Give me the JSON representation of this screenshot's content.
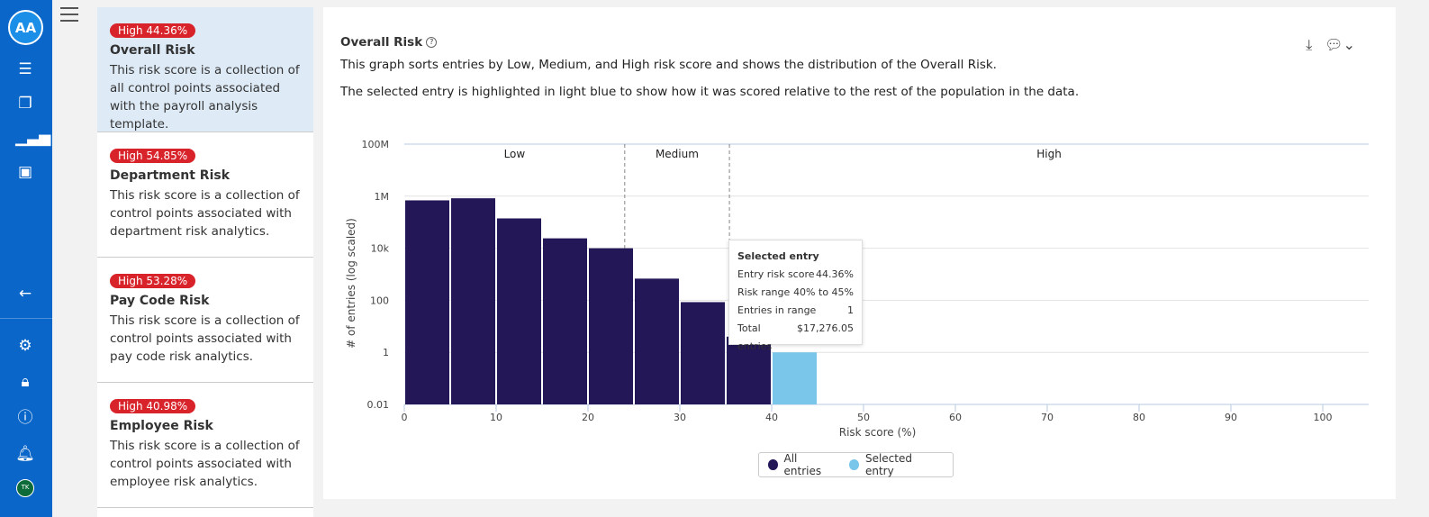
{
  "nav": {
    "logo": "AA",
    "icons": [
      "server-icon",
      "documents-icon",
      "bar-chart-icon",
      "reports-icon",
      "arrow-left-icon",
      "gear-icon",
      "lock-icon",
      "help-icon",
      "bell-icon"
    ],
    "avatar": "TK"
  },
  "cards": [
    {
      "badge": "High 44.36%",
      "title": "Overall Risk",
      "desc": "This risk score is a collection of all control points associated with the payroll analysis template.",
      "selected": true
    },
    {
      "badge": "High 54.85%",
      "title": "Department Risk",
      "desc": "This risk score is a collection of control points associated with department risk analytics."
    },
    {
      "badge": "High 53.28%",
      "title": "Pay Code Risk",
      "desc": "This risk score is a collection of control points associated with pay code risk analytics."
    },
    {
      "badge": "High 40.98%",
      "title": "Employee Risk",
      "desc": "This risk score is a collection of control points associated with employee risk analytics."
    }
  ],
  "panel": {
    "title": "Overall Risk",
    "desc1": "This graph sorts entries by Low, Medium, and High risk score and shows the distribution of the Overall Risk.",
    "desc2": "The selected entry is highlighted in light blue to show how it was scored relative to the rest of the population in the data."
  },
  "tooltip": {
    "title": "Selected entry",
    "rows": [
      [
        "Entry risk score",
        "44.36%"
      ],
      [
        "Risk range",
        "40% to 45%"
      ],
      [
        "Entries in range",
        "1"
      ],
      [
        "Total entries",
        "$17,276.05"
      ]
    ]
  },
  "chart_data": {
    "type": "bar",
    "xlabel": "Risk score (%)",
    "ylabel": "# of entries (log scaled)",
    "xlim": [
      0,
      105
    ],
    "ylim": [
      0.01,
      100000000
    ],
    "yscale": "log",
    "xticks": [
      0,
      10,
      20,
      30,
      40,
      50,
      60,
      70,
      80,
      90,
      100
    ],
    "yticks": [
      {
        "v": 0.01,
        "l": "0.01"
      },
      {
        "v": 1,
        "l": "1"
      },
      {
        "v": 100,
        "l": "100"
      },
      {
        "v": 10000,
        "l": "10k"
      },
      {
        "v": 1000000,
        "l": "1M"
      },
      {
        "v": 100000000,
        "l": "100M"
      }
    ],
    "bins": [
      [
        0,
        5
      ],
      [
        5,
        10
      ],
      [
        10,
        15
      ],
      [
        15,
        20
      ],
      [
        20,
        25
      ],
      [
        25,
        30
      ],
      [
        30,
        35
      ],
      [
        35,
        40
      ],
      [
        40,
        45
      ]
    ],
    "values": [
      690000,
      830000,
      140000,
      24000,
      10000,
      680,
      85,
      4,
      1
    ],
    "selected_bin": 8,
    "regions": [
      {
        "label": "Low",
        "from": 0,
        "to": 24
      },
      {
        "label": "Medium",
        "from": 24,
        "to": 35.4
      },
      {
        "label": "High",
        "from": 35.4,
        "to": 105
      }
    ],
    "colors": {
      "all": "#231758",
      "selected": "#79c6ea"
    },
    "legend": [
      {
        "name": "All entries",
        "color": "#231758"
      },
      {
        "name": "Selected entry",
        "color": "#79c6ea"
      }
    ],
    "legend_position": "bottom",
    "grid": true
  }
}
